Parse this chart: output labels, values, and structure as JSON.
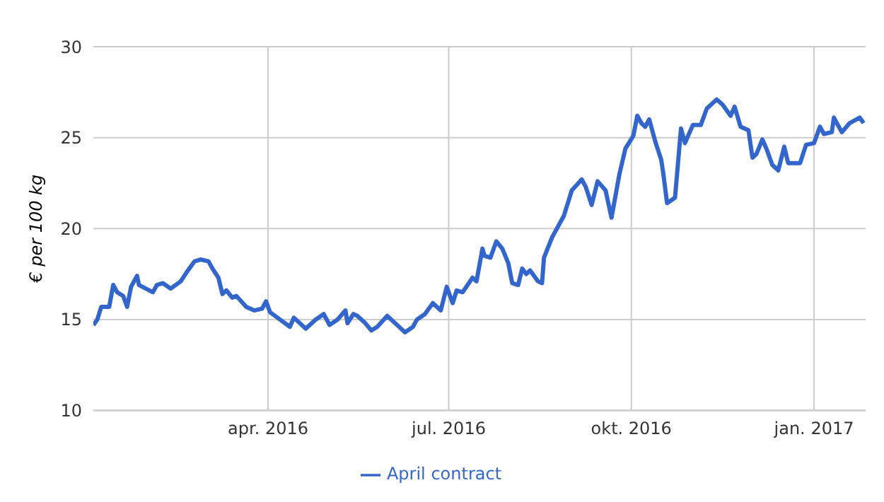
{
  "chart_data": {
    "type": "line",
    "ylabel": "€ per 100 kg",
    "xlim": [
      "2016-01-04",
      "2017-01-27"
    ],
    "xticks": [
      {
        "value": "2016-04-01",
        "label": "apr. 2016"
      },
      {
        "value": "2016-07-01",
        "label": "jul. 2016"
      },
      {
        "value": "2016-10-01",
        "label": "okt. 2016"
      },
      {
        "value": "2017-01-01",
        "label": "jan. 2017"
      }
    ],
    "ylim": [
      10,
      30
    ],
    "yticks": [
      10,
      15,
      20,
      25,
      30
    ],
    "grid": true,
    "legend": "bottom",
    "marker": "none",
    "line_style": "solid",
    "x": [
      "2016-01-04",
      "2016-01-06",
      "2016-01-08",
      "2016-01-12",
      "2016-01-14",
      "2016-01-16",
      "2016-01-19",
      "2016-01-21",
      "2016-01-23",
      "2016-01-26",
      "2016-01-27",
      "2016-02-03",
      "2016-02-05",
      "2016-02-08",
      "2016-02-12",
      "2016-02-17",
      "2016-02-20",
      "2016-02-24",
      "2016-02-27",
      "2016-03-02",
      "2016-03-04",
      "2016-03-07",
      "2016-03-09",
      "2016-03-11",
      "2016-03-14",
      "2016-03-16",
      "2016-03-21",
      "2016-03-25",
      "2016-03-29",
      "2016-03-31",
      "2016-04-02",
      "2016-04-07",
      "2016-04-12",
      "2016-04-14",
      "2016-04-20",
      "2016-04-25",
      "2016-04-29",
      "2016-05-02",
      "2016-05-06",
      "2016-05-10",
      "2016-05-11",
      "2016-05-14",
      "2016-05-16",
      "2016-05-20",
      "2016-05-23",
      "2016-05-26",
      "2016-05-31",
      "2016-06-05",
      "2016-06-09",
      "2016-06-13",
      "2016-06-15",
      "2016-06-19",
      "2016-06-23",
      "2016-06-27",
      "2016-06-30",
      "2016-07-03",
      "2016-07-05",
      "2016-07-08",
      "2016-07-13",
      "2016-07-15",
      "2016-07-18",
      "2016-07-19",
      "2016-07-22",
      "2016-07-25",
      "2016-07-28",
      "2016-07-31",
      "2016-08-02",
      "2016-08-05",
      "2016-08-07",
      "2016-08-09",
      "2016-08-11",
      "2016-08-15",
      "2016-08-17",
      "2016-08-18",
      "2016-08-22",
      "2016-08-28",
      "2016-09-01",
      "2016-09-06",
      "2016-09-08",
      "2016-09-11",
      "2016-09-14",
      "2016-09-18",
      "2016-09-21",
      "2016-09-25",
      "2016-09-28",
      "2016-10-02",
      "2016-10-04",
      "2016-10-06",
      "2016-10-08",
      "2016-10-10",
      "2016-10-13",
      "2016-10-16",
      "2016-10-17",
      "2016-10-19",
      "2016-10-23",
      "2016-10-26",
      "2016-10-28",
      "2016-11-01",
      "2016-11-05",
      "2016-11-08",
      "2016-11-13",
      "2016-11-16",
      "2016-11-20",
      "2016-11-22",
      "2016-11-25",
      "2016-11-29",
      "2016-12-01",
      "2016-12-03",
      "2016-12-06",
      "2016-12-08",
      "2016-12-11",
      "2016-12-14",
      "2016-12-17",
      "2016-12-19",
      "2016-12-25",
      "2016-12-28",
      "2017-01-01",
      "2017-01-04",
      "2017-01-06",
      "2017-01-10",
      "2017-01-11",
      "2017-01-15",
      "2017-01-19",
      "2017-01-24",
      "2017-01-26"
    ],
    "series": [
      {
        "name": "April contract",
        "color": "#3366cc",
        "values": [
          14.7,
          15.0,
          15.7,
          15.7,
          16.9,
          16.5,
          16.3,
          15.7,
          16.8,
          17.4,
          16.9,
          16.5,
          16.9,
          17.0,
          16.7,
          17.1,
          17.6,
          18.2,
          18.3,
          18.2,
          17.8,
          17.3,
          16.4,
          16.6,
          16.2,
          16.3,
          15.7,
          15.5,
          15.6,
          16.0,
          15.4,
          15.0,
          14.6,
          15.1,
          14.5,
          15.0,
          15.3,
          14.7,
          15.0,
          15.5,
          14.8,
          15.3,
          15.2,
          14.8,
          14.4,
          14.6,
          15.2,
          14.7,
          14.3,
          14.6,
          15.0,
          15.3,
          15.9,
          15.5,
          16.8,
          15.9,
          16.6,
          16.5,
          17.3,
          17.1,
          18.9,
          18.5,
          18.4,
          19.3,
          18.9,
          18.1,
          17.0,
          16.9,
          17.8,
          17.5,
          17.7,
          17.1,
          17.0,
          18.4,
          19.5,
          20.7,
          22.1,
          22.7,
          22.3,
          21.3,
          22.6,
          22.1,
          20.6,
          23.0,
          24.4,
          25.1,
          26.2,
          25.8,
          25.6,
          26.0,
          24.8,
          23.8,
          23.1,
          21.4,
          21.7,
          25.5,
          24.7,
          25.7,
          25.7,
          26.6,
          27.1,
          26.8,
          26.2,
          26.7,
          25.6,
          25.4,
          23.9,
          24.1,
          24.9,
          24.4,
          23.5,
          23.2,
          24.5,
          23.6,
          23.6,
          24.6,
          24.7,
          25.6,
          25.2,
          25.3,
          26.1,
          25.3,
          25.8,
          26.1,
          25.8
        ]
      }
    ]
  }
}
